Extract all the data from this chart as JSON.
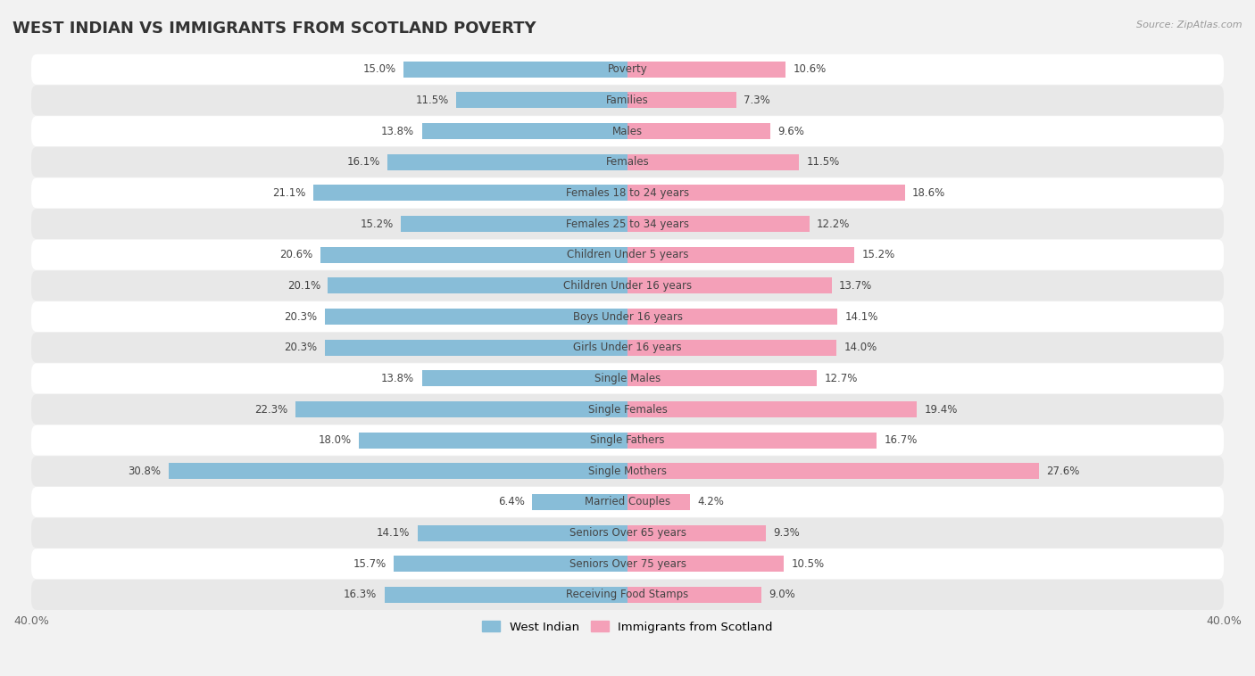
{
  "title": "WEST INDIAN VS IMMIGRANTS FROM SCOTLAND POVERTY",
  "source": "Source: ZipAtlas.com",
  "categories": [
    "Poverty",
    "Families",
    "Males",
    "Females",
    "Females 18 to 24 years",
    "Females 25 to 34 years",
    "Children Under 5 years",
    "Children Under 16 years",
    "Boys Under 16 years",
    "Girls Under 16 years",
    "Single Males",
    "Single Females",
    "Single Fathers",
    "Single Mothers",
    "Married Couples",
    "Seniors Over 65 years",
    "Seniors Over 75 years",
    "Receiving Food Stamps"
  ],
  "west_indian": [
    15.0,
    11.5,
    13.8,
    16.1,
    21.1,
    15.2,
    20.6,
    20.1,
    20.3,
    20.3,
    13.8,
    22.3,
    18.0,
    30.8,
    6.4,
    14.1,
    15.7,
    16.3
  ],
  "scotland": [
    10.6,
    7.3,
    9.6,
    11.5,
    18.6,
    12.2,
    15.2,
    13.7,
    14.1,
    14.0,
    12.7,
    19.4,
    16.7,
    27.6,
    4.2,
    9.3,
    10.5,
    9.0
  ],
  "west_indian_color": "#88bdd8",
  "scotland_color": "#f4a0b8",
  "background_color": "#f2f2f2",
  "row_color_odd": "#ffffff",
  "row_color_even": "#e8e8e8",
  "xlim": 40.0,
  "legend_west_indian": "West Indian",
  "legend_scotland": "Immigrants from Scotland",
  "title_fontsize": 13,
  "label_fontsize": 8.5,
  "value_fontsize": 8.5,
  "bar_height": 0.52
}
